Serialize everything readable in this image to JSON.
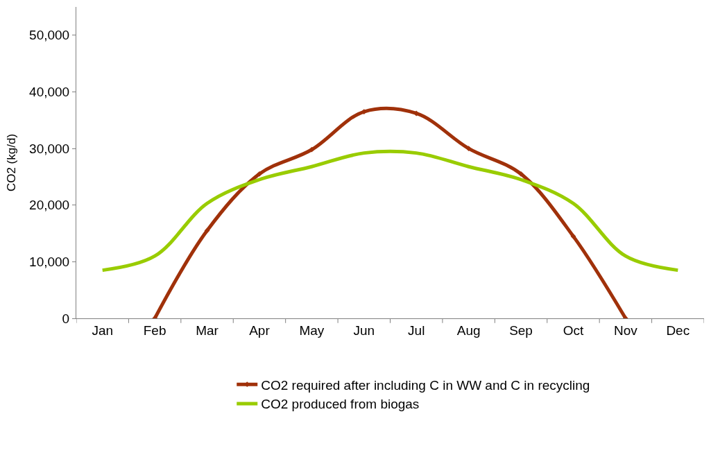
{
  "chart_data": {
    "type": "line",
    "categories": [
      "Jan",
      "Feb",
      "Mar",
      "Apr",
      "May",
      "Jun",
      "Jul",
      "Aug",
      "Sep",
      "Oct",
      "Nov",
      "Dec"
    ],
    "ylabel": "CO2 (kg/d)",
    "ylim": [
      0,
      55000
    ],
    "yticks": [
      0,
      {
        "value": 10000,
        "label": "10,000"
      },
      {
        "value": 20000,
        "label": "20,000"
      },
      {
        "value": 30000,
        "label": "30,000"
      },
      {
        "value": 40000,
        "label": "40,000"
      },
      {
        "value": 50000,
        "label": "50,000"
      }
    ],
    "legend": "bottom",
    "series": [
      {
        "name": "CO2 required after including C in WW and C in recycling",
        "color": "#a0310a",
        "marker": "diamond",
        "values": [
          null,
          0,
          15500,
          25500,
          29800,
          36500,
          36200,
          30000,
          25500,
          14500,
          0,
          null
        ]
      },
      {
        "name": "CO2 produced from biogas",
        "color": "#99cc00",
        "marker": "none",
        "values": [
          8500,
          11000,
          20300,
          24500,
          26800,
          29200,
          29200,
          26800,
          24500,
          20300,
          11000,
          8500
        ]
      }
    ]
  }
}
